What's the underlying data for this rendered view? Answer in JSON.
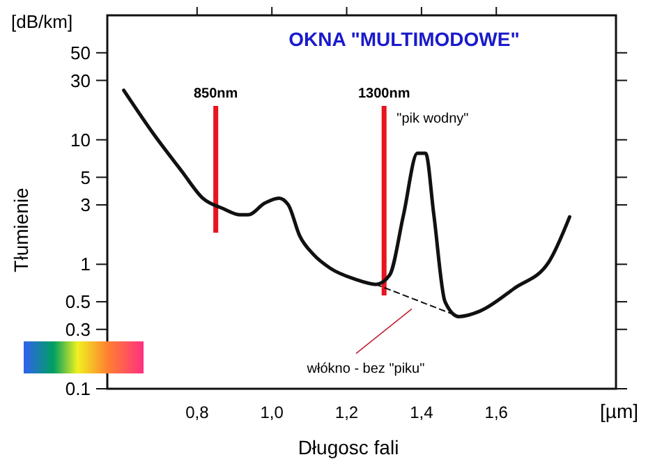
{
  "chart_data": {
    "type": "line",
    "title": "OKNA \"MULTIMODOWE\"",
    "xlabel": "Długosc fali",
    "ylabel": "Tłumienie",
    "log": "y",
    "grid": false,
    "marker": "none",
    "xlim": [
      0.56,
      1.92
    ],
    "xticks": [
      {
        "value": 0.8,
        "label": "0,8"
      },
      {
        "value": 1.0,
        "label": "1,0"
      },
      {
        "value": 1.2,
        "label": "1,2"
      },
      {
        "value": 1.4,
        "label": "1,4"
      },
      {
        "value": 1.6,
        "label": "1,6"
      }
    ],
    "ylim": [
      0.1,
      100
    ],
    "yticks": [
      0.1,
      0.3,
      0.5,
      1,
      3,
      5,
      10,
      30,
      50
    ],
    "series": [
      {
        "color": "#111111",
        "line_style": "solid",
        "x": [
          0.604,
          0.685,
          0.759,
          0.815,
          0.87,
          0.915,
          0.937,
          0.981,
          1.019,
          1.044,
          1.074,
          1.111,
          1.156,
          1.222,
          1.278,
          1.315,
          1.352,
          1.389,
          1.411,
          1.433,
          1.463,
          1.5,
          1.556,
          1.648,
          1.741,
          1.796
        ],
        "values": [
          25,
          11,
          5.6,
          3.4,
          2.8,
          2.5,
          2.5,
          3.1,
          3.4,
          3.0,
          1.7,
          1.2,
          0.93,
          0.76,
          0.69,
          0.82,
          2.5,
          7.8,
          7.8,
          2.5,
          0.5,
          0.38,
          0.42,
          0.64,
          1.05,
          2.4
        ]
      },
      {
        "color": "#111111",
        "line_style": "dashed",
        "x": [
          1.278,
          1.5
        ],
        "values": [
          0.69,
          0.38
        ]
      }
    ],
    "ref_lines": [
      {
        "axis": "x",
        "value": 0.85,
        "label": "850nm",
        "color": "#e8141e"
      },
      {
        "axis": "x",
        "value": 1.3,
        "label": "1300nm",
        "color": "#e8141e"
      }
    ],
    "annotations": [
      "[dB/km]",
      "[µm]",
      {
        "text": "\"pik wodny\"",
        "x": 1.4,
        "y": 7.8
      },
      "włókno - bez \"piku\""
    ]
  }
}
